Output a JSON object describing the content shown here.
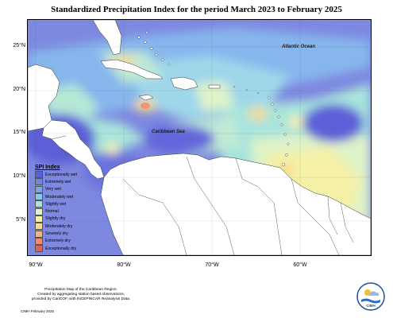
{
  "title": "Standardized Precipitation Index for the period March 2023 to February 2025",
  "labels": {
    "atlantic": "Atlantic Ocean",
    "caribbean": "Caribbean Sea"
  },
  "y_ticks": [
    "25°N",
    "20°N",
    "15°N",
    "10°N",
    "5°N"
  ],
  "x_ticks": [
    "90°W",
    "80°W",
    "70°W",
    "60°W"
  ],
  "legend": {
    "title": "SPI Index",
    "items": [
      {
        "label": "Exceptionally wet",
        "color": "#5d5fd8"
      },
      {
        "label": "Extremely wet",
        "color": "#6f86e0"
      },
      {
        "label": "Very wet",
        "color": "#78a8e8"
      },
      {
        "label": "Moderately wet",
        "color": "#86c8ee"
      },
      {
        "label": "Slightly wet",
        "color": "#a8e4dc"
      },
      {
        "label": "Normal",
        "color": "#dff3c8"
      },
      {
        "label": "Slightly dry",
        "color": "#f5f1a6"
      },
      {
        "label": "Moderately dry",
        "color": "#f9d98a"
      },
      {
        "label": "Severely dry",
        "color": "#f8b27a"
      },
      {
        "label": "Extremely dry",
        "color": "#f38a6a"
      },
      {
        "label": "Exceptionally dry",
        "color": "#e95c58"
      }
    ]
  },
  "credit": {
    "line1": "Precipitation Map of the Caribbean Region.",
    "line2": "Created by aggregating station based observations,",
    "line3": "provided by CariCOF, with INCEPINCAR Reanalysis Data.",
    "date": "CIMH February 2025"
  },
  "logo_text": "CIMH"
}
